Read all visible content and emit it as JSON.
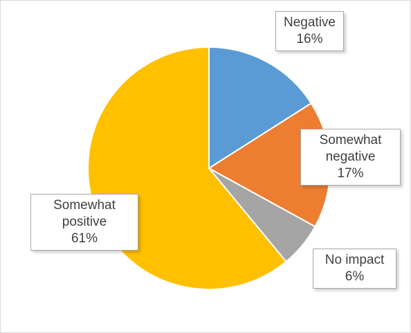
{
  "chart_data": {
    "type": "pie",
    "title": "",
    "slices": [
      {
        "label": "Negative",
        "value": 16,
        "display": "16%",
        "color": "#5b9bd5"
      },
      {
        "label": "Somewhat negative",
        "value": 17,
        "display": "17%",
        "color": "#ed7d31"
      },
      {
        "label": "No impact",
        "value": 6,
        "display": "6%",
        "color": "#a5a5a5"
      },
      {
        "label": "Somewhat positive",
        "value": 61,
        "display": "61%",
        "color": "#ffc000"
      }
    ],
    "start_angle_deg": 0,
    "direction": "clockwise",
    "legend": "none",
    "data_labels": "callout boxes with category name and percentage"
  },
  "labels": {
    "negative": {
      "line1": "Negative",
      "value": "16%"
    },
    "somewhat_negative": {
      "line1": "Somewhat",
      "line2": "negative",
      "value": "17%"
    },
    "no_impact": {
      "line1": "No impact",
      "value": "6%"
    },
    "somewhat_positive": {
      "line1": "Somewhat",
      "line2": "positive",
      "value": "61%"
    }
  }
}
